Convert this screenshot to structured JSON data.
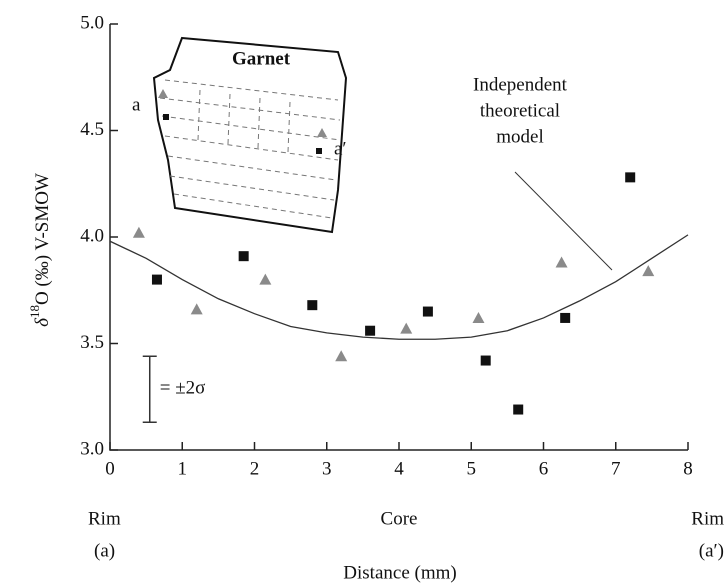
{
  "chart_data": {
    "type": "scatter",
    "y_label": {
      "symbol": "δ",
      "sup": "18",
      "rest": "O (‰) V-SMOW"
    },
    "x_label": "Distance (mm)",
    "x_endpoints": [
      {
        "name": "Rim",
        "side": "(a)",
        "x": 0
      },
      {
        "name": "Core",
        "x": 4
      },
      {
        "name": "Rim",
        "side": "(a′)",
        "x": 8
      }
    ],
    "xlim": [
      0,
      8
    ],
    "xticks": [
      0,
      1,
      2,
      3,
      4,
      5,
      6,
      7,
      8
    ],
    "ylim": [
      3.0,
      5.0
    ],
    "yticks": [
      {
        "value": 3.0,
        "label": "3.0"
      },
      {
        "value": 3.5,
        "label": "3.5"
      },
      {
        "value": 4.0,
        "label": "4.0"
      },
      {
        "value": 4.5,
        "label": "4.5"
      },
      {
        "value": 5.0,
        "label": "5.0"
      }
    ],
    "series": [
      {
        "marker": "square",
        "color": "#111111",
        "x": [
          0.65,
          1.85,
          2.8,
          3.6,
          4.4,
          5.2,
          5.65,
          6.3,
          7.2
        ],
        "values": [
          3.8,
          3.91,
          3.68,
          3.56,
          3.65,
          3.42,
          3.19,
          3.62,
          4.28
        ]
      },
      {
        "marker": "triangle",
        "color": "#8a8a8a",
        "x": [
          0.4,
          1.2,
          2.15,
          3.2,
          4.1,
          5.1,
          6.25,
          7.45
        ],
        "values": [
          4.02,
          3.66,
          3.8,
          3.44,
          3.57,
          3.62,
          3.88,
          3.84
        ]
      },
      {
        "marker": "line",
        "color": "#333333",
        "x": [
          0,
          0.5,
          1,
          1.5,
          2,
          2.5,
          3,
          3.5,
          4,
          4.5,
          5,
          5.5,
          6,
          6.5,
          7,
          7.5,
          8
        ],
        "values": [
          3.98,
          3.9,
          3.8,
          3.71,
          3.64,
          3.58,
          3.55,
          3.53,
          3.52,
          3.52,
          3.53,
          3.56,
          3.62,
          3.7,
          3.79,
          3.9,
          4.01
        ]
      }
    ],
    "model_label": [
      "Independent",
      "theoretical",
      "model"
    ],
    "error_bar": {
      "x": 0.55,
      "value": 3.285,
      "error": 0.155,
      "label": "= ±2σ"
    },
    "inset": {
      "title": "Garnet",
      "left_label": "a",
      "right_label": "a′"
    }
  }
}
